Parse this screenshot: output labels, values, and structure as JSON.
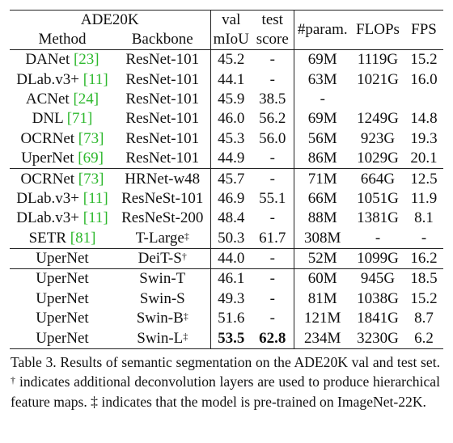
{
  "table": {
    "header": {
      "dataset": "ADE20K",
      "method": "Method",
      "backbone": "Backbone",
      "val_top": "val",
      "val_bottom": "mIoU",
      "test_top": "test",
      "test_bottom": "score",
      "params": "#param.",
      "flops": "FLOPs",
      "fps": "FPS"
    },
    "groups": [
      [
        {
          "method": "DANet",
          "ref": "[23]",
          "backbone": "ResNet-101",
          "bsup": "",
          "val": "45.2",
          "test": "-",
          "params": "69M",
          "flops": "1119G",
          "fps": "15.2"
        },
        {
          "method": "DLab.v3+",
          "ref": "[11]",
          "backbone": "ResNet-101",
          "bsup": "",
          "val": "44.1",
          "test": "-",
          "params": "63M",
          "flops": "1021G",
          "fps": "16.0"
        },
        {
          "method": "ACNet",
          "ref": "[24]",
          "backbone": "ResNet-101",
          "bsup": "",
          "val": "45.9",
          "test": "38.5",
          "params": "-",
          "flops": "",
          "fps": ""
        },
        {
          "method": "DNL",
          "ref": "[71]",
          "backbone": "ResNet-101",
          "bsup": "",
          "val": "46.0",
          "test": "56.2",
          "params": "69M",
          "flops": "1249G",
          "fps": "14.8"
        },
        {
          "method": "OCRNet",
          "ref": "[73]",
          "backbone": "ResNet-101",
          "bsup": "",
          "val": "45.3",
          "test": "56.0",
          "params": "56M",
          "flops": "923G",
          "fps": "19.3"
        },
        {
          "method": "UperNet",
          "ref": "[69]",
          "backbone": "ResNet-101",
          "bsup": "",
          "val": "44.9",
          "test": "-",
          "params": "86M",
          "flops": "1029G",
          "fps": "20.1"
        }
      ],
      [
        {
          "method": "OCRNet",
          "ref": "[73]",
          "backbone": "HRNet-w48",
          "bsup": "",
          "val": "45.7",
          "test": "-",
          "params": "71M",
          "flops": "664G",
          "fps": "12.5"
        },
        {
          "method": "DLab.v3+",
          "ref": "[11]",
          "backbone": "ResNeSt-101",
          "bsup": "",
          "val": "46.9",
          "test": "55.1",
          "params": "66M",
          "flops": "1051G",
          "fps": "11.9"
        },
        {
          "method": "DLab.v3+",
          "ref": "[11]",
          "backbone": "ResNeSt-200",
          "bsup": "",
          "val": "48.4",
          "test": "-",
          "params": "88M",
          "flops": "1381G",
          "fps": "8.1"
        },
        {
          "method": "SETR",
          "ref": "[81]",
          "backbone": "T-Large",
          "bsup": "‡",
          "val": "50.3",
          "test": "61.7",
          "params": "308M",
          "flops": "-",
          "fps": "-"
        }
      ],
      [
        {
          "method": "UperNet",
          "ref": "",
          "backbone": "DeiT-S",
          "bsup": "†",
          "val": "44.0",
          "test": "-",
          "params": "52M",
          "flops": "1099G",
          "fps": "16.2"
        }
      ],
      [
        {
          "method": "UperNet",
          "ref": "",
          "backbone": "Swin-T",
          "bsup": "",
          "val": "46.1",
          "test": "-",
          "params": "60M",
          "flops": "945G",
          "fps": "18.5"
        },
        {
          "method": "UperNet",
          "ref": "",
          "backbone": "Swin-S",
          "bsup": "",
          "val": "49.3",
          "test": "-",
          "params": "81M",
          "flops": "1038G",
          "fps": "15.2"
        },
        {
          "method": "UperNet",
          "ref": "",
          "backbone": "Swin-B",
          "bsup": "‡",
          "val": "51.6",
          "test": "-",
          "params": "121M",
          "flops": "1841G",
          "fps": "8.7"
        },
        {
          "method": "UperNet",
          "ref": "",
          "backbone": "Swin-L",
          "bsup": "‡",
          "val": "53.5",
          "test": "62.8",
          "params": "234M",
          "flops": "3230G",
          "fps": "6.2",
          "bold_val": true,
          "bold_test": true
        }
      ]
    ],
    "ref_color": "#2db82d"
  },
  "caption": {
    "part1": "Table 3. Results of semantic segmentation on the ADE20K val and test set. ",
    "dagger": "†",
    "part2": " indicates additional deconvolution layers are used to produce hierarchical feature maps. ",
    "ddagger": "‡",
    "part3": " indicates that the model is pre-trained on ImageNet-22K."
  }
}
